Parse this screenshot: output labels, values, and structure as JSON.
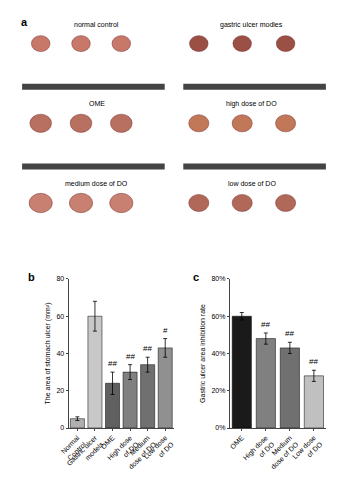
{
  "chart_data": [
    {
      "type": "illustration",
      "title": "a",
      "categories": [
        "normal control",
        "gastric ulcer modles",
        "OME",
        "high dose of DO",
        "medium dose of DO",
        "low dose of DO"
      ],
      "colors": [
        "#c87868",
        "#9a5045",
        "#b87060",
        "#c07858",
        "#c88070",
        "#b06858"
      ],
      "color": "#444444"
    },
    {
      "type": "bar",
      "title": "b",
      "categories": [
        "Normal\nControl",
        "Gastric ulcer\nmodels",
        "OME",
        "High dose\nof DO",
        "Medium\ndose of DO",
        "Low dose\nof DO"
      ],
      "values": [
        5,
        60,
        24,
        30,
        34,
        43
      ],
      "errors": [
        1,
        8,
        6,
        4,
        4,
        5
      ],
      "colors": [
        "#b0b0b0",
        "#c8c8c8",
        "#606060",
        "#808080",
        "#707070",
        "#909090"
      ],
      "ylabel": "The area of stomach ulcer (mm²)",
      "ylim": [
        0,
        80
      ],
      "yticks": [
        0,
        20,
        40,
        60,
        80
      ],
      "grid": false,
      "annotations": [
        {
          "category": "OME",
          "text": "##"
        },
        {
          "category": "High dose\nof DO",
          "text": "##"
        },
        {
          "category": "Medium\ndose of DO",
          "text": "##"
        },
        {
          "category": "Low dose\nof DO",
          "text": "#"
        }
      ]
    },
    {
      "type": "bar",
      "title": "c",
      "categories": [
        "OME",
        "High dose\nof DO",
        "Medium\ndose of DO",
        "Low dose\nof DO"
      ],
      "values": [
        60,
        48,
        43,
        28
      ],
      "errors": [
        2,
        3,
        3,
        3
      ],
      "colors": [
        "#1a1a1a",
        "#808080",
        "#707070",
        "#c0c0c0"
      ],
      "ylabel": "Gastric ulcer area inhibition rate",
      "ylim": [
        0,
        80
      ],
      "yticks": [
        {
          "value": 0,
          "label": "0%"
        },
        {
          "value": 20,
          "label": "20%"
        },
        {
          "value": 40,
          "label": "40%"
        },
        {
          "value": 60,
          "label": "60%"
        },
        {
          "value": 80,
          "label": "80%"
        }
      ],
      "grid": false,
      "annotations": [
        {
          "category": "High dose\nof DO",
          "text": "##"
        },
        {
          "category": "Medium\ndose of DO",
          "text": "##"
        },
        {
          "category": "Low dose\nof DO",
          "text": "##"
        }
      ]
    }
  ]
}
